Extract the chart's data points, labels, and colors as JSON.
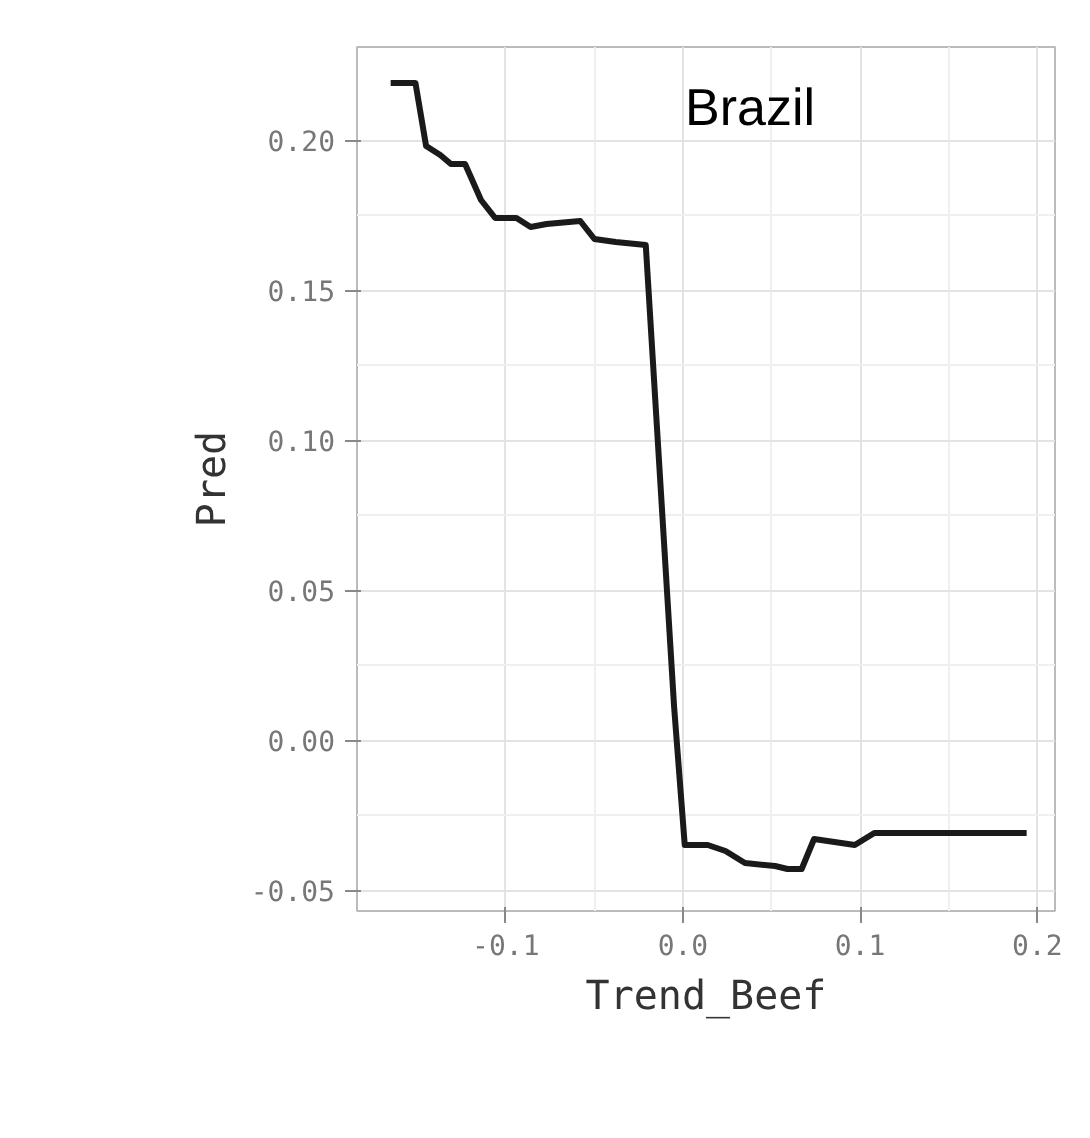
{
  "chart_data": {
    "type": "line",
    "xlabel": "Trend_Beef",
    "ylabel": "Pred",
    "annotations": [
      "Brazil"
    ],
    "xlim": [
      -0.184,
      0.21
    ],
    "ylim": [
      -0.057,
      0.231
    ],
    "xticks": [
      -0.1,
      {
        "value": 0.0,
        "label": "0.0"
      },
      0.1,
      0.2
    ],
    "yticks": [
      -0.05,
      {
        "value": 0.0,
        "label": "0.00"
      },
      0.05,
      {
        "value": 0.1,
        "label": "0.10"
      },
      0.15,
      {
        "value": 0.2,
        "label": "0.20"
      }
    ],
    "grid": true,
    "line_style": "solid",
    "marker": "none",
    "series": [
      {
        "color": "#1a1a1a",
        "x": [
          -0.165,
          -0.151,
          -0.145,
          -0.137,
          -0.131,
          -0.123,
          -0.114,
          -0.106,
          -0.094,
          -0.086,
          -0.077,
          -0.058,
          -0.05,
          -0.038,
          -0.021,
          -0.005,
          0.001,
          0.014,
          0.024,
          0.035,
          0.052,
          0.059,
          0.067,
          0.074,
          0.097,
          0.108,
          0.149,
          0.194
        ],
        "values": [
          0.219,
          0.219,
          0.198,
          0.195,
          0.192,
          0.192,
          0.18,
          0.174,
          0.174,
          0.171,
          0.172,
          0.173,
          0.167,
          0.166,
          0.165,
          0.011,
          -0.035,
          -0.035,
          -0.037,
          -0.041,
          -0.042,
          -0.043,
          -0.043,
          -0.033,
          -0.035,
          -0.031,
          -0.031,
          -0.031
        ]
      }
    ]
  }
}
